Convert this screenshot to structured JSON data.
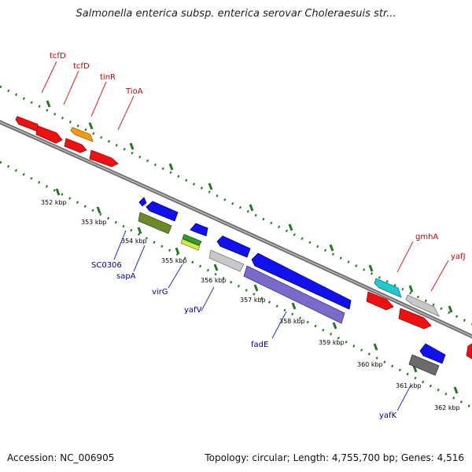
{
  "title": "Salmonella enterica subsp. enterica serovar Choleraesuis str...",
  "footer": {
    "accession": "Accession: NC_006905",
    "summary": "Topology: circular; Length: 4,755,700 bp; Genes: 4,516"
  },
  "colors": {
    "forward_label": "#cc0000",
    "reverse_label": "#000099",
    "backbone": "#888888",
    "dotted_guide": "#1f7a1f"
  },
  "ticks": [
    "352 kbp",
    "353 kbp",
    "354 kbp",
    "355 kbp",
    "356 kbp",
    "357 kbp",
    "358 kbp",
    "359 kbp",
    "360 kbp",
    "361 kbp",
    "362 kbp"
  ],
  "forward_labels": [
    "tcfD",
    "tcfD",
    "tinR",
    "TioA",
    "gmhA",
    "yafJ"
  ],
  "reverse_labels": [
    "SC0306",
    "sapA",
    "virG",
    "yafV",
    "fadE",
    "yafK"
  ]
}
